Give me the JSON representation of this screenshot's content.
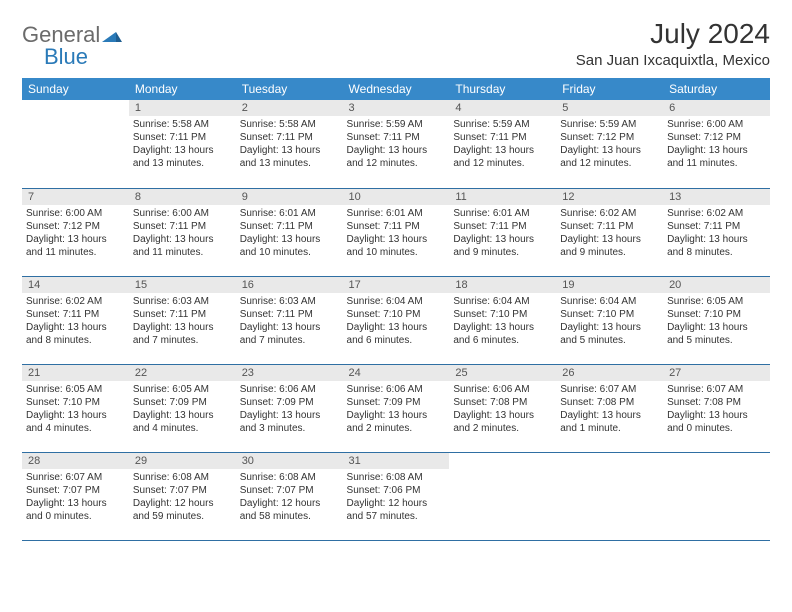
{
  "logo": {
    "general": "General",
    "blue": "Blue"
  },
  "title": "July 2024",
  "location": "San Juan Ixcaquixtla, Mexico",
  "colors": {
    "header_bg": "#3789c9",
    "header_text": "#ffffff",
    "daynum_bg": "#e9e9e9",
    "row_border": "#2f6fa3",
    "body_text": "#333333",
    "logo_gray": "#6b6b6b",
    "logo_blue": "#2a7ab8"
  },
  "day_headers": [
    "Sunday",
    "Monday",
    "Tuesday",
    "Wednesday",
    "Thursday",
    "Friday",
    "Saturday"
  ],
  "weeks": [
    [
      {
        "num": "",
        "sunrise": "",
        "sunset": "",
        "daylight": ""
      },
      {
        "num": "1",
        "sunrise": "Sunrise: 5:58 AM",
        "sunset": "Sunset: 7:11 PM",
        "daylight": "Daylight: 13 hours and 13 minutes."
      },
      {
        "num": "2",
        "sunrise": "Sunrise: 5:58 AM",
        "sunset": "Sunset: 7:11 PM",
        "daylight": "Daylight: 13 hours and 13 minutes."
      },
      {
        "num": "3",
        "sunrise": "Sunrise: 5:59 AM",
        "sunset": "Sunset: 7:11 PM",
        "daylight": "Daylight: 13 hours and 12 minutes."
      },
      {
        "num": "4",
        "sunrise": "Sunrise: 5:59 AM",
        "sunset": "Sunset: 7:11 PM",
        "daylight": "Daylight: 13 hours and 12 minutes."
      },
      {
        "num": "5",
        "sunrise": "Sunrise: 5:59 AM",
        "sunset": "Sunset: 7:12 PM",
        "daylight": "Daylight: 13 hours and 12 minutes."
      },
      {
        "num": "6",
        "sunrise": "Sunrise: 6:00 AM",
        "sunset": "Sunset: 7:12 PM",
        "daylight": "Daylight: 13 hours and 11 minutes."
      }
    ],
    [
      {
        "num": "7",
        "sunrise": "Sunrise: 6:00 AM",
        "sunset": "Sunset: 7:12 PM",
        "daylight": "Daylight: 13 hours and 11 minutes."
      },
      {
        "num": "8",
        "sunrise": "Sunrise: 6:00 AM",
        "sunset": "Sunset: 7:11 PM",
        "daylight": "Daylight: 13 hours and 11 minutes."
      },
      {
        "num": "9",
        "sunrise": "Sunrise: 6:01 AM",
        "sunset": "Sunset: 7:11 PM",
        "daylight": "Daylight: 13 hours and 10 minutes."
      },
      {
        "num": "10",
        "sunrise": "Sunrise: 6:01 AM",
        "sunset": "Sunset: 7:11 PM",
        "daylight": "Daylight: 13 hours and 10 minutes."
      },
      {
        "num": "11",
        "sunrise": "Sunrise: 6:01 AM",
        "sunset": "Sunset: 7:11 PM",
        "daylight": "Daylight: 13 hours and 9 minutes."
      },
      {
        "num": "12",
        "sunrise": "Sunrise: 6:02 AM",
        "sunset": "Sunset: 7:11 PM",
        "daylight": "Daylight: 13 hours and 9 minutes."
      },
      {
        "num": "13",
        "sunrise": "Sunrise: 6:02 AM",
        "sunset": "Sunset: 7:11 PM",
        "daylight": "Daylight: 13 hours and 8 minutes."
      }
    ],
    [
      {
        "num": "14",
        "sunrise": "Sunrise: 6:02 AM",
        "sunset": "Sunset: 7:11 PM",
        "daylight": "Daylight: 13 hours and 8 minutes."
      },
      {
        "num": "15",
        "sunrise": "Sunrise: 6:03 AM",
        "sunset": "Sunset: 7:11 PM",
        "daylight": "Daylight: 13 hours and 7 minutes."
      },
      {
        "num": "16",
        "sunrise": "Sunrise: 6:03 AM",
        "sunset": "Sunset: 7:11 PM",
        "daylight": "Daylight: 13 hours and 7 minutes."
      },
      {
        "num": "17",
        "sunrise": "Sunrise: 6:04 AM",
        "sunset": "Sunset: 7:10 PM",
        "daylight": "Daylight: 13 hours and 6 minutes."
      },
      {
        "num": "18",
        "sunrise": "Sunrise: 6:04 AM",
        "sunset": "Sunset: 7:10 PM",
        "daylight": "Daylight: 13 hours and 6 minutes."
      },
      {
        "num": "19",
        "sunrise": "Sunrise: 6:04 AM",
        "sunset": "Sunset: 7:10 PM",
        "daylight": "Daylight: 13 hours and 5 minutes."
      },
      {
        "num": "20",
        "sunrise": "Sunrise: 6:05 AM",
        "sunset": "Sunset: 7:10 PM",
        "daylight": "Daylight: 13 hours and 5 minutes."
      }
    ],
    [
      {
        "num": "21",
        "sunrise": "Sunrise: 6:05 AM",
        "sunset": "Sunset: 7:10 PM",
        "daylight": "Daylight: 13 hours and 4 minutes."
      },
      {
        "num": "22",
        "sunrise": "Sunrise: 6:05 AM",
        "sunset": "Sunset: 7:09 PM",
        "daylight": "Daylight: 13 hours and 4 minutes."
      },
      {
        "num": "23",
        "sunrise": "Sunrise: 6:06 AM",
        "sunset": "Sunset: 7:09 PM",
        "daylight": "Daylight: 13 hours and 3 minutes."
      },
      {
        "num": "24",
        "sunrise": "Sunrise: 6:06 AM",
        "sunset": "Sunset: 7:09 PM",
        "daylight": "Daylight: 13 hours and 2 minutes."
      },
      {
        "num": "25",
        "sunrise": "Sunrise: 6:06 AM",
        "sunset": "Sunset: 7:08 PM",
        "daylight": "Daylight: 13 hours and 2 minutes."
      },
      {
        "num": "26",
        "sunrise": "Sunrise: 6:07 AM",
        "sunset": "Sunset: 7:08 PM",
        "daylight": "Daylight: 13 hours and 1 minute."
      },
      {
        "num": "27",
        "sunrise": "Sunrise: 6:07 AM",
        "sunset": "Sunset: 7:08 PM",
        "daylight": "Daylight: 13 hours and 0 minutes."
      }
    ],
    [
      {
        "num": "28",
        "sunrise": "Sunrise: 6:07 AM",
        "sunset": "Sunset: 7:07 PM",
        "daylight": "Daylight: 13 hours and 0 minutes."
      },
      {
        "num": "29",
        "sunrise": "Sunrise: 6:08 AM",
        "sunset": "Sunset: 7:07 PM",
        "daylight": "Daylight: 12 hours and 59 minutes."
      },
      {
        "num": "30",
        "sunrise": "Sunrise: 6:08 AM",
        "sunset": "Sunset: 7:07 PM",
        "daylight": "Daylight: 12 hours and 58 minutes."
      },
      {
        "num": "31",
        "sunrise": "Sunrise: 6:08 AM",
        "sunset": "Sunset: 7:06 PM",
        "daylight": "Daylight: 12 hours and 57 minutes."
      },
      {
        "num": "",
        "sunrise": "",
        "sunset": "",
        "daylight": ""
      },
      {
        "num": "",
        "sunrise": "",
        "sunset": "",
        "daylight": ""
      },
      {
        "num": "",
        "sunrise": "",
        "sunset": "",
        "daylight": ""
      }
    ]
  ]
}
